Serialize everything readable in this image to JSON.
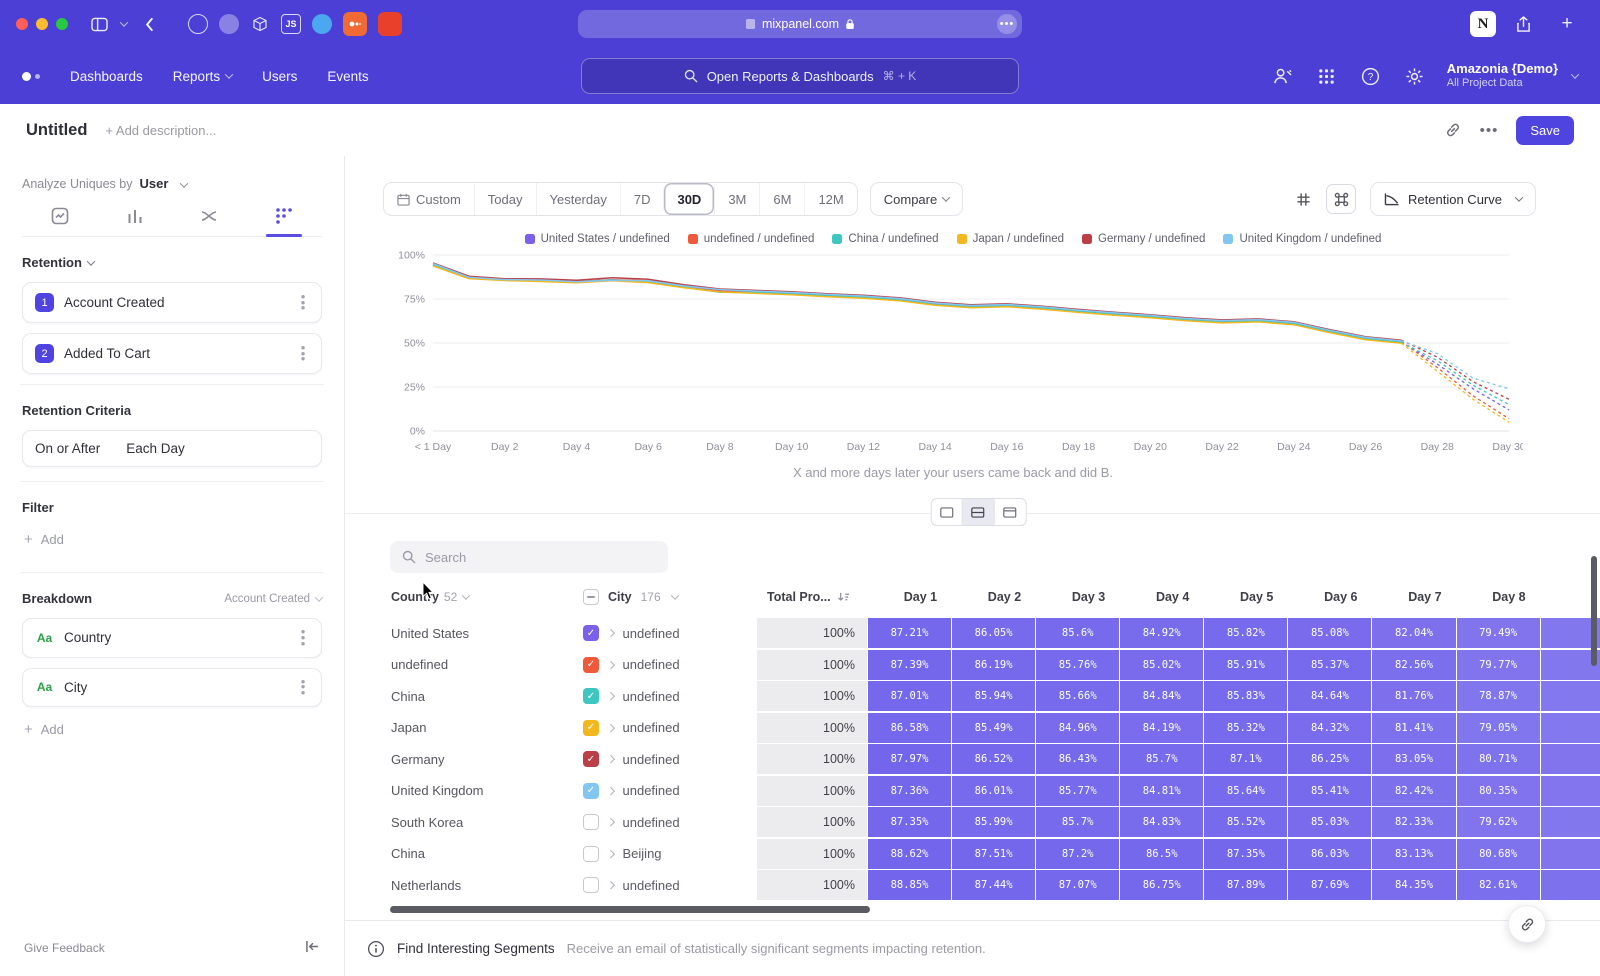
{
  "browser": {
    "url": "mixpanel.com"
  },
  "nav": {
    "items": [
      "Dashboards",
      "Reports",
      "Users",
      "Events"
    ],
    "search_placeholder": "Open Reports & Dashboards",
    "search_shortcut": "⌘ + K",
    "project": {
      "name": "Amazonia {Demo}",
      "scope": "All Project Data"
    }
  },
  "page": {
    "title": "Untitled",
    "description_placeholder": "+ Add description...",
    "save": "Save"
  },
  "sidebar": {
    "analyze_label": "Analyze Uniques by",
    "analyze_value": "User",
    "retention_heading": "Retention",
    "steps": [
      {
        "num": "1",
        "label": "Account Created"
      },
      {
        "num": "2",
        "label": "Added To Cart"
      }
    ],
    "criteria_heading": "Retention Criteria",
    "criteria_on_or_after": "On or After",
    "criteria_each_day": "Each Day",
    "filter_heading": "Filter",
    "add_label": "Add",
    "breakdown_heading": "Breakdown",
    "breakdown_scope": "Account Created",
    "breakdowns": [
      {
        "badge": "Aa",
        "label": "Country"
      },
      {
        "badge": "Aa",
        "label": "City"
      }
    ],
    "give_feedback": "Give Feedback"
  },
  "toolbar": {
    "ranges": [
      "Custom",
      "Today",
      "Yesterday",
      "7D",
      "30D",
      "3M",
      "6M",
      "12M"
    ],
    "selected_range": "30D",
    "compare": "Compare",
    "chart_type": "Retention Curve"
  },
  "chart_data": {
    "type": "line",
    "x": [
      0,
      1,
      2,
      3,
      4,
      5,
      6,
      7,
      8,
      9,
      10,
      11,
      12,
      13,
      14,
      15,
      16,
      17,
      18,
      19,
      20,
      21,
      22,
      23,
      24,
      25,
      26,
      27,
      28,
      29,
      30
    ],
    "x_tick_labels": [
      "< 1 Day",
      "Day 2",
      "Day 4",
      "Day 6",
      "Day 8",
      "Day 10",
      "Day 12",
      "Day 14",
      "Day 16",
      "Day 18",
      "Day 20",
      "Day 22",
      "Day 24",
      "Day 26",
      "Day 28",
      "Day 30"
    ],
    "y_tick_labels": [
      "0%",
      "25%",
      "50%",
      "75%",
      "100%"
    ],
    "ylim": [
      0,
      100
    ],
    "dashed_from_index": 27,
    "caption": "X and more days later your users came back and did B.",
    "series": [
      {
        "name": "United States / undefined",
        "color": "#7b61ea",
        "values": [
          94.5,
          87.21,
          86.05,
          85.6,
          84.92,
          85.82,
          85.08,
          82.04,
          79.49,
          78.9,
          78.1,
          77.0,
          76.1,
          74.7,
          72.1,
          70.7,
          71.3,
          69.9,
          68.1,
          66.5,
          65.1,
          63.3,
          62.1,
          62.7,
          61.1,
          56.6,
          52.6,
          50.6,
          38.0,
          24.0,
          12.0
        ]
      },
      {
        "name": "undefined / undefined",
        "color": "#ee5a3a",
        "values": [
          94.8,
          87.39,
          86.19,
          85.76,
          85.02,
          85.91,
          85.37,
          82.56,
          79.77,
          79.2,
          78.4,
          77.3,
          76.4,
          75.0,
          72.4,
          71.0,
          71.6,
          70.2,
          68.4,
          66.8,
          65.4,
          63.6,
          62.4,
          63.0,
          61.4,
          56.9,
          52.9,
          50.9,
          36.0,
          20.0,
          7.0
        ]
      },
      {
        "name": "China / undefined",
        "color": "#3ec6c0",
        "values": [
          94.3,
          87.01,
          85.94,
          85.66,
          84.84,
          85.83,
          84.64,
          81.76,
          78.87,
          78.7,
          77.9,
          76.8,
          75.9,
          74.5,
          71.9,
          70.5,
          71.1,
          69.7,
          67.9,
          66.3,
          64.9,
          63.1,
          61.9,
          62.5,
          60.9,
          56.4,
          52.4,
          50.4,
          40.0,
          26.0,
          15.0
        ]
      },
      {
        "name": "Japan / undefined",
        "color": "#f3b71f",
        "values": [
          93.8,
          86.58,
          85.49,
          84.96,
          84.19,
          85.32,
          84.32,
          81.41,
          79.05,
          78.2,
          77.4,
          76.3,
          75.4,
          74.0,
          71.4,
          70.0,
          70.6,
          69.2,
          67.4,
          65.8,
          64.4,
          62.6,
          61.4,
          62.0,
          60.4,
          55.9,
          51.9,
          49.9,
          34.0,
          18.0,
          5.0
        ]
      },
      {
        "name": "Germany / undefined",
        "color": "#bb3f47",
        "values": [
          95.5,
          87.97,
          86.52,
          86.43,
          85.7,
          87.1,
          86.25,
          83.05,
          80.71,
          79.9,
          79.1,
          78.0,
          77.1,
          75.7,
          73.1,
          71.7,
          72.3,
          70.9,
          69.1,
          67.5,
          66.1,
          64.3,
          63.1,
          63.7,
          62.1,
          57.6,
          53.6,
          51.6,
          42.0,
          28.0,
          18.0
        ]
      },
      {
        "name": "United Kingdom / undefined",
        "color": "#82c7f2",
        "values": [
          95.1,
          87.36,
          86.01,
          85.77,
          84.81,
          85.64,
          85.41,
          82.42,
          80.35,
          79.5,
          78.7,
          77.6,
          76.7,
          75.3,
          72.7,
          71.3,
          71.9,
          70.5,
          68.7,
          67.1,
          65.7,
          63.9,
          62.7,
          63.3,
          61.7,
          57.2,
          53.2,
          51.2,
          44.0,
          30.0,
          24.0
        ]
      }
    ]
  },
  "view_toggle": {
    "options": [
      "chart-only-view",
      "split-view",
      "table-view"
    ],
    "selected_index": 1
  },
  "table": {
    "search_placeholder": "Search",
    "columns": {
      "country": {
        "label": "Country",
        "count": "52"
      },
      "city": {
        "label": "City",
        "count": "176"
      },
      "total": {
        "label": "Total Pro..."
      },
      "days": [
        "Day 1",
        "Day 2",
        "Day 3",
        "Day 4",
        "Day 5",
        "Day 6",
        "Day 7",
        "Day 8"
      ]
    },
    "rows": [
      {
        "country": "United States",
        "city": "undefined",
        "checked": true,
        "color": "#7b61ea",
        "total": "100%",
        "days": [
          "87.21%",
          "86.05%",
          "85.6%",
          "84.92%",
          "85.82%",
          "85.08%",
          "82.04%",
          "79.49%"
        ]
      },
      {
        "country": "undefined",
        "city": "undefined",
        "checked": true,
        "color": "#ee5a3a",
        "total": "100%",
        "days": [
          "87.39%",
          "86.19%",
          "85.76%",
          "85.02%",
          "85.91%",
          "85.37%",
          "82.56%",
          "79.77%"
        ]
      },
      {
        "country": "China",
        "city": "undefined",
        "checked": true,
        "color": "#3ec6c0",
        "total": "100%",
        "days": [
          "87.01%",
          "85.94%",
          "85.66%",
          "84.84%",
          "85.83%",
          "84.64%",
          "81.76%",
          "78.87%"
        ]
      },
      {
        "country": "Japan",
        "city": "undefined",
        "checked": true,
        "color": "#f3b71f",
        "total": "100%",
        "days": [
          "86.58%",
          "85.49%",
          "84.96%",
          "84.19%",
          "85.32%",
          "84.32%",
          "81.41%",
          "79.05%"
        ]
      },
      {
        "country": "Germany",
        "city": "undefined",
        "checked": true,
        "color": "#bb3f47",
        "total": "100%",
        "days": [
          "87.97%",
          "86.52%",
          "86.43%",
          "85.7%",
          "87.1%",
          "86.25%",
          "83.05%",
          "80.71%"
        ]
      },
      {
        "country": "United Kingdom",
        "city": "undefined",
        "checked": true,
        "color": "#82c7f2",
        "total": "100%",
        "days": [
          "87.36%",
          "86.01%",
          "85.77%",
          "84.81%",
          "85.64%",
          "85.41%",
          "82.42%",
          "80.35%"
        ]
      },
      {
        "country": "South Korea",
        "city": "undefined",
        "checked": false,
        "color": null,
        "total": "100%",
        "days": [
          "87.35%",
          "85.99%",
          "85.7%",
          "84.83%",
          "85.52%",
          "85.03%",
          "82.33%",
          "79.62%"
        ]
      },
      {
        "country": "China",
        "city": "Beijing",
        "checked": false,
        "color": null,
        "total": "100%",
        "days": [
          "88.62%",
          "87.51%",
          "87.2%",
          "86.5%",
          "87.35%",
          "86.03%",
          "83.13%",
          "80.68%"
        ]
      },
      {
        "country": "Netherlands",
        "city": "undefined",
        "checked": false,
        "color": null,
        "total": "100%",
        "days": [
          "88.85%",
          "87.44%",
          "87.07%",
          "86.75%",
          "87.89%",
          "87.69%",
          "84.35%",
          "82.61%"
        ]
      }
    ]
  },
  "footer": {
    "title": "Find Interesting Segments",
    "subtitle": "Receive an email of statistically significant segments impacting retention."
  }
}
